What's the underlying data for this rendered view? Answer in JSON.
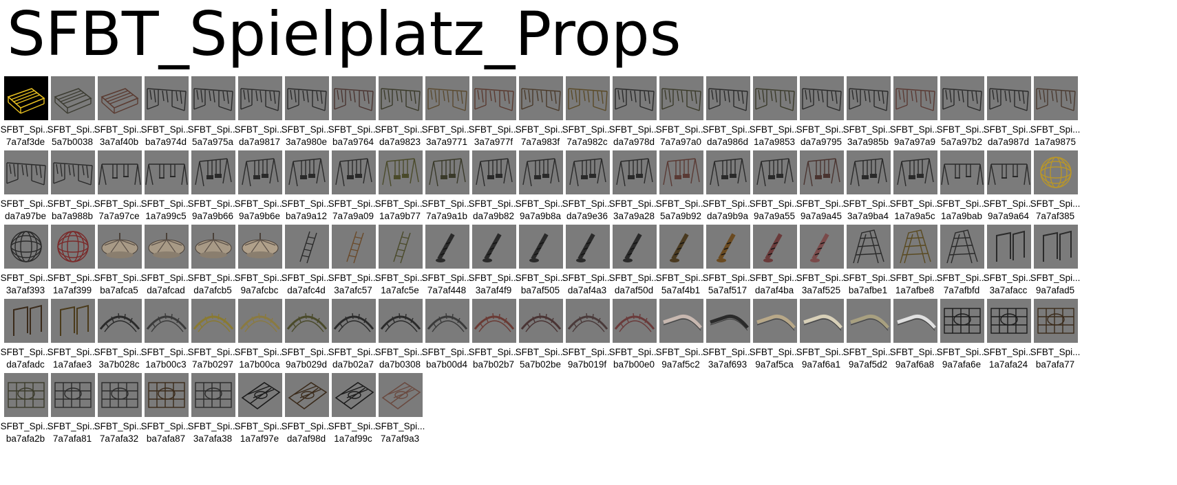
{
  "folder_title": "SFBT_Spielplatz_Props",
  "tiles": [
    {
      "name": "SFBT_Spi...",
      "id": "7a7af3de",
      "kind": "platform",
      "tint": "#e8c020",
      "selected": true
    },
    {
      "name": "SFBT_Spi...",
      "id": "5a7b0038",
      "kind": "platform",
      "tint": "#3c3c32"
    },
    {
      "name": "SFBT_Spi...",
      "id": "3a7af40b",
      "kind": "platform",
      "tint": "#5a3a30"
    },
    {
      "name": "SFBT_Spi...",
      "id": "ba7a974d",
      "kind": "bridge",
      "tint": "#2a2a2a"
    },
    {
      "name": "SFBT_Spi...",
      "id": "5a7a975a",
      "kind": "bridge",
      "tint": "#2a2a2a"
    },
    {
      "name": "SFBT_Spi...",
      "id": "da7a9817",
      "kind": "bridge",
      "tint": "#2a2a2a"
    },
    {
      "name": "SFBT_Spi...",
      "id": "3a7a980e",
      "kind": "bridge",
      "tint": "#2a2a2a"
    },
    {
      "name": "SFBT_Spi...",
      "id": "ba7a9764",
      "kind": "bridge",
      "tint": "#4a3430"
    },
    {
      "name": "SFBT_Spi...",
      "id": "da7a9823",
      "kind": "bridge",
      "tint": "#3a3a2a"
    },
    {
      "name": "SFBT_Spi...",
      "id": "3a7a9771",
      "kind": "bridge",
      "tint": "#5a4a30"
    },
    {
      "name": "SFBT_Spi...",
      "id": "3a7a977f",
      "kind": "bridge",
      "tint": "#5a3a30"
    },
    {
      "name": "SFBT_Spi...",
      "id": "7a7a983f",
      "kind": "bridge",
      "tint": "#4a3a2a"
    },
    {
      "name": "SFBT_Spi...",
      "id": "7a7a982c",
      "kind": "bridge",
      "tint": "#5a4a28"
    },
    {
      "name": "SFBT_Spi...",
      "id": "da7a978d",
      "kind": "bridge",
      "tint": "#2a2a2a"
    },
    {
      "name": "SFBT_Spi...",
      "id": "7a7a97a0",
      "kind": "bridge",
      "tint": "#3a3a2a"
    },
    {
      "name": "SFBT_Spi...",
      "id": "da7a986d",
      "kind": "bridge",
      "tint": "#2a2a2a"
    },
    {
      "name": "SFBT_Spi...",
      "id": "1a7a9853",
      "kind": "bridge",
      "tint": "#3a3a2a"
    },
    {
      "name": "SFBT_Spi...",
      "id": "da7a9795",
      "kind": "bridge",
      "tint": "#2a2a2a"
    },
    {
      "name": "SFBT_Spi...",
      "id": "3a7a985b",
      "kind": "bridge",
      "tint": "#2a2a2a"
    },
    {
      "name": "SFBT_Spi...",
      "id": "9a7a97a9",
      "kind": "bridge",
      "tint": "#5a3a34"
    },
    {
      "name": "SFBT_Spi...",
      "id": "5a7a97b2",
      "kind": "bridge",
      "tint": "#2a2a2a"
    },
    {
      "name": "SFBT_Spi...",
      "id": "da7a987d",
      "kind": "bridge",
      "tint": "#2a2a2a"
    },
    {
      "name": "SFBT_Spi...",
      "id": "1a7a9875",
      "kind": "bridge",
      "tint": "#4a3a30"
    },
    {
      "name": "SFBT_Spi...",
      "id": "da7a97be",
      "kind": "bridge",
      "tint": "#2a2a2a"
    },
    {
      "name": "SFBT_Spi...",
      "id": "ba7a988b",
      "kind": "bridge",
      "tint": "#2a2a2a"
    },
    {
      "name": "SFBT_Spi...",
      "id": "7a7a97ce",
      "kind": "swingset",
      "tint": "#2a2a2a"
    },
    {
      "name": "SFBT_Spi...",
      "id": "1a7a99c5",
      "kind": "swingset",
      "tint": "#2a2a2a"
    },
    {
      "name": "SFBT_Spi...",
      "id": "9a7a9b66",
      "kind": "swing",
      "tint": "#2a2a2a"
    },
    {
      "name": "SFBT_Spi...",
      "id": "9a7a9b6e",
      "kind": "swing",
      "tint": "#2a2a2a"
    },
    {
      "name": "SFBT_Spi...",
      "id": "ba7a9a12",
      "kind": "swing",
      "tint": "#2a2a2a"
    },
    {
      "name": "SFBT_Spi...",
      "id": "7a7a9a09",
      "kind": "swing",
      "tint": "#2a2a2a"
    },
    {
      "name": "SFBT_Spi...",
      "id": "1a7a9b77",
      "kind": "swing",
      "tint": "#4a4a2a"
    },
    {
      "name": "SFBT_Spi...",
      "id": "7a7a9a1b",
      "kind": "swing",
      "tint": "#3a3a2a"
    },
    {
      "name": "SFBT_Spi...",
      "id": "da7a9b82",
      "kind": "swing",
      "tint": "#2a2a2a"
    },
    {
      "name": "SFBT_Spi...",
      "id": "9a7a9b8a",
      "kind": "swing",
      "tint": "#2a2a2a"
    },
    {
      "name": "SFBT_Spi...",
      "id": "da7a9e36",
      "kind": "swing",
      "tint": "#2a2a2a"
    },
    {
      "name": "SFBT_Spi...",
      "id": "3a7a9a28",
      "kind": "swing",
      "tint": "#2a2a2a"
    },
    {
      "name": "SFBT_Spi...",
      "id": "5a7a9b92",
      "kind": "swing",
      "tint": "#5a3a34"
    },
    {
      "name": "SFBT_Spi...",
      "id": "da7a9b9a",
      "kind": "swing",
      "tint": "#2a2a2a"
    },
    {
      "name": "SFBT_Spi...",
      "id": "9a7a9a55",
      "kind": "swing",
      "tint": "#2a2a2a"
    },
    {
      "name": "SFBT_Spi...",
      "id": "9a7a9a45",
      "kind": "swing",
      "tint": "#4a3430"
    },
    {
      "name": "SFBT_Spi...",
      "id": "3a7a9ba4",
      "kind": "swing",
      "tint": "#2a2a2a"
    },
    {
      "name": "SFBT_Spi...",
      "id": "1a7a9a5c",
      "kind": "swing",
      "tint": "#2a2a2a"
    },
    {
      "name": "SFBT_Spi...",
      "id": "1a7a9bab",
      "kind": "swingset",
      "tint": "#2a2a2a"
    },
    {
      "name": "SFBT_Spi...",
      "id": "9a7a9a64",
      "kind": "swingset",
      "tint": "#2a2a2a"
    },
    {
      "name": "SFBT_Spi...",
      "id": "7a7af385",
      "kind": "globe",
      "tint": "#b8962a"
    },
    {
      "name": "SFBT_Spi...",
      "id": "3a7af393",
      "kind": "globe",
      "tint": "#2a2a2a"
    },
    {
      "name": "SFBT_Spi...",
      "id": "1a7af399",
      "kind": "globe",
      "tint": "#7a2a2a"
    },
    {
      "name": "SFBT_Spi...",
      "id": "ba7afca5",
      "kind": "carousel",
      "tint": "#a89a86"
    },
    {
      "name": "SFBT_Spi...",
      "id": "da7afcad",
      "kind": "carousel",
      "tint": "#a89a86"
    },
    {
      "name": "SFBT_Spi...",
      "id": "da7afcb5",
      "kind": "carousel",
      "tint": "#a89a86"
    },
    {
      "name": "SFBT_Spi...",
      "id": "9a7afcbc",
      "kind": "carousel",
      "tint": "#b0a08a"
    },
    {
      "name": "SFBT_Spi...",
      "id": "da7afc4d",
      "kind": "ladder",
      "tint": "#2a2a2a"
    },
    {
      "name": "SFBT_Spi...",
      "id": "3a7afc57",
      "kind": "ladder",
      "tint": "#6a4a2a"
    },
    {
      "name": "SFBT_Spi...",
      "id": "1a7afc5e",
      "kind": "ladder",
      "tint": "#4a4a2a"
    },
    {
      "name": "SFBT_Spi...",
      "id": "7a7af448",
      "kind": "spring",
      "tint": "#2a2a2a"
    },
    {
      "name": "SFBT_Spi...",
      "id": "3a7af4f9",
      "kind": "spring",
      "tint": "#2a2a2a"
    },
    {
      "name": "SFBT_Spi...",
      "id": "ba7af505",
      "kind": "spring",
      "tint": "#2a2a2a"
    },
    {
      "name": "SFBT_Spi...",
      "id": "da7af4a3",
      "kind": "spring",
      "tint": "#2a2a2a"
    },
    {
      "name": "SFBT_Spi...",
      "id": "da7af50d",
      "kind": "spring",
      "tint": "#2a2a2a"
    },
    {
      "name": "SFBT_Spi...",
      "id": "5a7af4b1",
      "kind": "spring",
      "tint": "#4a3a20"
    },
    {
      "name": "SFBT_Spi...",
      "id": "5a7af517",
      "kind": "spring",
      "tint": "#6a4a20"
    },
    {
      "name": "SFBT_Spi...",
      "id": "da7af4ba",
      "kind": "spring",
      "tint": "#6a3a3a"
    },
    {
      "name": "SFBT_Spi...",
      "id": "3a7af525",
      "kind": "spring",
      "tint": "#7a4a4a"
    },
    {
      "name": "SFBT_Spi...",
      "id": "ba7afbe1",
      "kind": "dome",
      "tint": "#2a2a2a"
    },
    {
      "name": "SFBT_Spi...",
      "id": "1a7afbe8",
      "kind": "dome",
      "tint": "#5a4a20"
    },
    {
      "name": "SFBT_Spi...",
      "id": "7a7afbfd",
      "kind": "dome",
      "tint": "#2a2a2a"
    },
    {
      "name": "SFBT_Spi...",
      "id": "3a7afacc",
      "kind": "bars",
      "tint": "#2a2a2a"
    },
    {
      "name": "SFBT_Spi...",
      "id": "9a7afad5",
      "kind": "bars",
      "tint": "#2a2a2a"
    },
    {
      "name": "SFBT_Spi...",
      "id": "da7afadc",
      "kind": "bars",
      "tint": "#3a2a1a"
    },
    {
      "name": "SFBT_Spi...",
      "id": "1a7afae3",
      "kind": "bars",
      "tint": "#4a3a1a"
    },
    {
      "name": "SFBT_Spi...",
      "id": "3a7b028c",
      "kind": "arch",
      "tint": "#2a2a2a"
    },
    {
      "name": "SFBT_Spi...",
      "id": "1a7b00c3",
      "kind": "arch",
      "tint": "#3a3a3a"
    },
    {
      "name": "SFBT_Spi...",
      "id": "7a7b0297",
      "kind": "arch",
      "tint": "#8a7a30"
    },
    {
      "name": "SFBT_Spi...",
      "id": "1a7b00ca",
      "kind": "arch",
      "tint": "#8a7a40"
    },
    {
      "name": "SFBT_Spi...",
      "id": "9a7b029d",
      "kind": "arch",
      "tint": "#4a4a2a"
    },
    {
      "name": "SFBT_Spi...",
      "id": "da7b02a7",
      "kind": "arch",
      "tint": "#2a2a2a"
    },
    {
      "name": "SFBT_Spi...",
      "id": "da7b0308",
      "kind": "arch",
      "tint": "#2a2a2a"
    },
    {
      "name": "SFBT_Spi...",
      "id": "ba7b00d4",
      "kind": "arch",
      "tint": "#3a3a3a"
    },
    {
      "name": "SFBT_Spi...",
      "id": "ba7b02b7",
      "kind": "arch",
      "tint": "#6a3a34"
    },
    {
      "name": "SFBT_Spi...",
      "id": "5a7b02be",
      "kind": "arch",
      "tint": "#4a3434"
    },
    {
      "name": "SFBT_Spi...",
      "id": "9a7b019f",
      "kind": "arch",
      "tint": "#4a3a3a"
    },
    {
      "name": "SFBT_Spi...",
      "id": "ba7b00e0",
      "kind": "arch",
      "tint": "#6a3a3a"
    },
    {
      "name": "SFBT_Spi...",
      "id": "9a7af5c2",
      "kind": "slide",
      "tint": "#c8b8b0"
    },
    {
      "name": "SFBT_Spi...",
      "id": "3a7af693",
      "kind": "slide",
      "tint": "#2a2a2a"
    },
    {
      "name": "SFBT_Spi...",
      "id": "9a7af5ca",
      "kind": "slide",
      "tint": "#b8a888"
    },
    {
      "name": "SFBT_Spi...",
      "id": "9a7af6a1",
      "kind": "slide",
      "tint": "#d8d0b8"
    },
    {
      "name": "SFBT_Spi...",
      "id": "9a7af5d2",
      "kind": "slide",
      "tint": "#a8a080"
    },
    {
      "name": "SFBT_Spi...",
      "id": "9a7af6a8",
      "kind": "slide",
      "tint": "#e0e0e0"
    },
    {
      "name": "SFBT_Spi...",
      "id": "9a7afa6e",
      "kind": "fence",
      "tint": "#1a1a1a"
    },
    {
      "name": "SFBT_Spi...",
      "id": "1a7afa24",
      "kind": "fence",
      "tint": "#1a1a1a"
    },
    {
      "name": "SFBT_Spi...",
      "id": "ba7afa77",
      "kind": "fence",
      "tint": "#3a2a1a"
    },
    {
      "name": "SFBT_Spi...",
      "id": "ba7afa2b",
      "kind": "fence",
      "tint": "#3a3a2a"
    },
    {
      "name": "SFBT_Spi...",
      "id": "7a7afa81",
      "kind": "fence",
      "tint": "#2a2a2a"
    },
    {
      "name": "SFBT_Spi...",
      "id": "7a7afa32",
      "kind": "fence",
      "tint": "#2a2a2a"
    },
    {
      "name": "SFBT_Spi...",
      "id": "ba7afa87",
      "kind": "fence",
      "tint": "#3a2a1a"
    },
    {
      "name": "SFBT_Spi...",
      "id": "3a7afa38",
      "kind": "fence",
      "tint": "#2a2a2a"
    },
    {
      "name": "SFBT_Spi...",
      "id": "1a7af97e",
      "kind": "panel",
      "tint": "#1a1a1a"
    },
    {
      "name": "SFBT_Spi...",
      "id": "da7af98d",
      "kind": "panel",
      "tint": "#3a2a1a"
    },
    {
      "name": "SFBT_Spi...",
      "id": "1a7af99c",
      "kind": "panel",
      "tint": "#1a1a1a"
    },
    {
      "name": "SFBT_Spi...",
      "id": "7a7af9a3",
      "kind": "panel",
      "tint": "#6a4a40"
    }
  ]
}
